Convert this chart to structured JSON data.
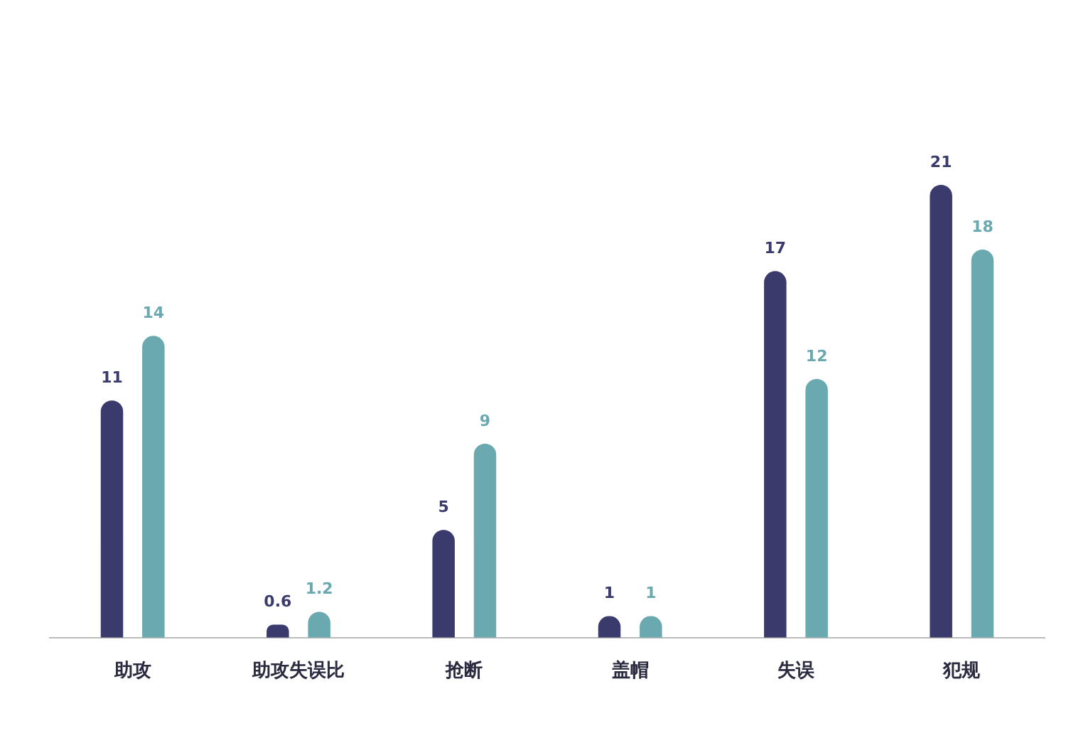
{
  "chart_data": {
    "type": "bar",
    "categories": [
      "助攻",
      "助攻失误比",
      "抢断",
      "盖帽",
      "失误",
      "犯规"
    ],
    "series": [
      {
        "color": "#3b3a6d",
        "values": [
          11,
          0.6,
          5,
          1,
          17,
          21
        ]
      },
      {
        "color": "#6aa9b0",
        "values": [
          14,
          1.2,
          9,
          1,
          12,
          18
        ]
      }
    ],
    "data_labels": true,
    "grid": false,
    "legend": false
  }
}
